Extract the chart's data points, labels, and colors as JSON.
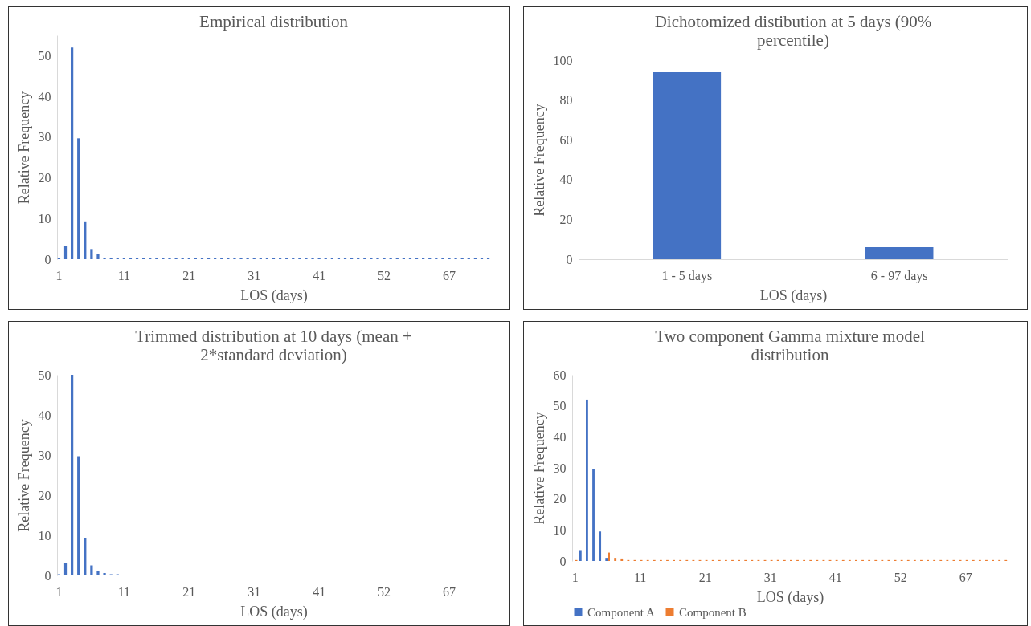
{
  "chart_data": [
    {
      "type": "bar",
      "title": "Empirical distribution",
      "xlabel": "LOS (days)",
      "ylabel": "Relative Frequency",
      "categories": [
        "1",
        null,
        null,
        null,
        null,
        null,
        null,
        null,
        null,
        null,
        "11",
        null,
        null,
        null,
        null,
        null,
        null,
        null,
        null,
        null,
        "21",
        null,
        null,
        null,
        null,
        null,
        null,
        null,
        null,
        null,
        "31",
        null,
        null,
        null,
        null,
        null,
        null,
        null,
        null,
        null,
        "41",
        null,
        null,
        null,
        null,
        null,
        null,
        null,
        null,
        null,
        "52",
        null,
        null,
        null,
        null,
        null,
        null,
        null,
        null,
        null,
        "67",
        null,
        null,
        null,
        null,
        null,
        null
      ],
      "series": [
        {
          "color": "#4472c4",
          "values": [
            0.3,
            3.3,
            52,
            29.7,
            9.3,
            2.5,
            1.2,
            0.2,
            0.2,
            0.2,
            0.2,
            0.2,
            0.2,
            0.2,
            0.2,
            0.2,
            0.2,
            0.2,
            0.2,
            0.2,
            0.2,
            0.2,
            0.2,
            0.2,
            0.2,
            0.2,
            0.2,
            0.2,
            0.2,
            0.2,
            0.2,
            0.2,
            0.2,
            0.2,
            0.2,
            0.2,
            0.2,
            0.2,
            0.2,
            0.2,
            0.2,
            0.2,
            0.2,
            0.2,
            0.2,
            0.2,
            0.2,
            0.2,
            0.2,
            0.2,
            0.2,
            0.2,
            0.2,
            0.2,
            0.2,
            0.2,
            0.2,
            0.2,
            0.2,
            0.2,
            0.2,
            0.2,
            0.2,
            0.2,
            0.2,
            0.2,
            0.2
          ]
        }
      ],
      "ylim": [
        0,
        55
      ],
      "yticks": [
        0,
        10,
        20,
        30,
        40,
        50
      ],
      "grid": false,
      "legend": false
    },
    {
      "type": "bar",
      "title": "Dichotomized distibution at 5 days (90% percentile)",
      "xlabel": "LOS (days)",
      "ylabel": "Relative Frequency",
      "categories": [
        "1 - 5 days",
        "6 - 97 days"
      ],
      "series": [
        {
          "color": "#4472c4",
          "values": [
            94,
            6
          ]
        }
      ],
      "ylim": [
        0,
        100
      ],
      "yticks": [
        0,
        20,
        40,
        60,
        80,
        100
      ],
      "grid": false,
      "legend": false
    },
    {
      "type": "bar",
      "title": "Trimmed distribution at 10 days (mean + 2*standard deviation)",
      "xlabel": "LOS (days)",
      "ylabel": "Relative Frequency",
      "categories": [
        "1",
        null,
        null,
        null,
        null,
        null,
        null,
        null,
        null,
        null,
        "11",
        null,
        null,
        null,
        null,
        null,
        null,
        null,
        null,
        null,
        "21",
        null,
        null,
        null,
        null,
        null,
        null,
        null,
        null,
        null,
        "31",
        null,
        null,
        null,
        null,
        null,
        null,
        null,
        null,
        null,
        "41",
        null,
        null,
        null,
        null,
        null,
        null,
        null,
        null,
        null,
        "52",
        null,
        null,
        null,
        null,
        null,
        null,
        null,
        null,
        null,
        "67",
        null,
        null,
        null,
        null,
        null,
        null
      ],
      "series": [
        {
          "color": "#4472c4",
          "values": [
            0.3,
            3.1,
            50,
            29.7,
            9.4,
            2.5,
            1.2,
            0.6,
            0.3,
            0.3,
            null,
            null,
            null,
            null,
            null,
            null,
            null,
            null,
            null,
            null,
            null,
            null,
            null,
            null,
            null,
            null,
            null,
            null,
            null,
            null,
            null,
            null,
            null,
            null,
            null,
            null,
            null,
            null,
            null,
            null,
            null,
            null,
            null,
            null,
            null,
            null,
            null,
            null,
            null,
            null,
            null,
            null,
            null,
            null,
            null,
            null,
            null,
            null,
            null,
            null,
            null,
            null,
            null,
            null,
            null,
            null,
            null
          ]
        }
      ],
      "ylim": [
        0,
        50
      ],
      "yticks": [
        0,
        10,
        20,
        30,
        40,
        50
      ],
      "grid": false,
      "legend": false
    },
    {
      "type": "bar",
      "title": "Two component Gamma mixture model distribution",
      "xlabel": "LOS (days)",
      "ylabel": "Relative Frequency",
      "categories": [
        "1",
        null,
        null,
        null,
        null,
        null,
        null,
        null,
        null,
        null,
        "11",
        null,
        null,
        null,
        null,
        null,
        null,
        null,
        null,
        null,
        "21",
        null,
        null,
        null,
        null,
        null,
        null,
        null,
        null,
        null,
        "31",
        null,
        null,
        null,
        null,
        null,
        null,
        null,
        null,
        null,
        "41",
        null,
        null,
        null,
        null,
        null,
        null,
        null,
        null,
        null,
        "52",
        null,
        null,
        null,
        null,
        null,
        null,
        null,
        null,
        null,
        "67",
        null,
        null,
        null,
        null,
        null,
        null
      ],
      "series": [
        {
          "name": "Component A",
          "color": "#4472c4",
          "values": [
            null,
            3.5,
            52,
            29.5,
            9.5,
            1.0,
            null,
            null,
            null,
            null,
            null,
            null,
            null,
            null,
            null,
            null,
            null,
            null,
            null,
            null,
            null,
            null,
            null,
            null,
            null,
            null,
            null,
            null,
            null,
            null,
            null,
            null,
            null,
            null,
            null,
            null,
            null,
            null,
            null,
            null,
            null,
            null,
            null,
            null,
            null,
            null,
            null,
            null,
            null,
            null,
            null,
            null,
            null,
            null,
            null,
            null,
            null,
            null,
            null,
            null,
            null,
            null,
            null,
            null,
            null,
            null,
            null
          ]
        },
        {
          "name": "Component B",
          "color": "#ed7d31",
          "values": [
            0.3,
            null,
            null,
            null,
            null,
            2.7,
            1.0,
            0.8,
            0.3,
            0.3,
            0.3,
            0.3,
            0.3,
            0.3,
            0.3,
            0.3,
            0.3,
            0.3,
            0.3,
            0.3,
            0.3,
            0.3,
            0.3,
            0.3,
            0.3,
            0.3,
            0.3,
            0.3,
            0.3,
            0.3,
            0.3,
            0.3,
            0.3,
            0.3,
            0.3,
            0.3,
            0.3,
            0.3,
            0.3,
            0.3,
            0.3,
            0.3,
            0.3,
            0.3,
            0.3,
            0.3,
            0.3,
            0.3,
            0.3,
            0.3,
            0.3,
            0.3,
            0.3,
            0.3,
            0.3,
            0.3,
            0.3,
            0.3,
            0.3,
            0.3,
            0.3,
            0.3,
            0.3,
            0.3,
            0.3,
            0.3,
            0.3
          ]
        }
      ],
      "ylim": [
        0,
        60
      ],
      "yticks": [
        0,
        10,
        20,
        30,
        40,
        50,
        60
      ],
      "grid": false,
      "legend": "bottom"
    }
  ]
}
